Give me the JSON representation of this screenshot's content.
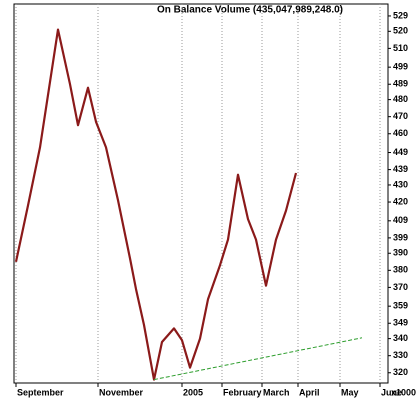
{
  "chart_data": {
    "type": "line",
    "title": "On Balance Volume (435,047,989,248.0)",
    "y_unit_label": "x1000",
    "series": [
      {
        "name": null,
        "color": "#8b1a1a",
        "x": [
          0,
          1.2,
          2.4,
          4.2,
          5.4,
          6.2,
          7.2,
          8,
          9,
          10.2,
          11.4,
          12,
          12.8,
          13.8,
          14.6,
          15.8,
          16.6,
          17.4,
          18.4,
          19.2,
          20.4,
          21.2,
          22.2,
          23.2,
          24,
          25,
          26,
          27,
          28
        ],
        "values": [
          385,
          418,
          452,
          521,
          489,
          465,
          487,
          467,
          452,
          421,
          387,
          369,
          348,
          316,
          338,
          346,
          339,
          323,
          340,
          363,
          383,
          398,
          436,
          410,
          398,
          371,
          398,
          415,
          437
        ]
      }
    ],
    "trendline": {
      "color": "#2e9e2e",
      "dashed": true,
      "x": [
        13.8,
        34.6
      ],
      "values": [
        316,
        340.5
      ]
    },
    "xlim": [
      -0.2,
      37.2
    ],
    "xticks": [
      {
        "value": 0,
        "label": "September"
      },
      {
        "value": 8.2,
        "label": "November"
      },
      {
        "value": 16.6,
        "label": "2005"
      },
      {
        "value": 20.6,
        "label": "February"
      },
      {
        "value": 24.6,
        "label": "March"
      },
      {
        "value": 28.2,
        "label": "April"
      },
      {
        "value": 32.4,
        "label": "May"
      },
      {
        "value": 36.4,
        "label": "June"
      }
    ],
    "ylim": [
      314,
      536
    ],
    "yticks": [
      529,
      520,
      510,
      499,
      489,
      480,
      470,
      460,
      449,
      439,
      430,
      420,
      409,
      399,
      390,
      380,
      370,
      359,
      349,
      340,
      330,
      320
    ],
    "grid_x": true,
    "y_axis_side": "right"
  }
}
